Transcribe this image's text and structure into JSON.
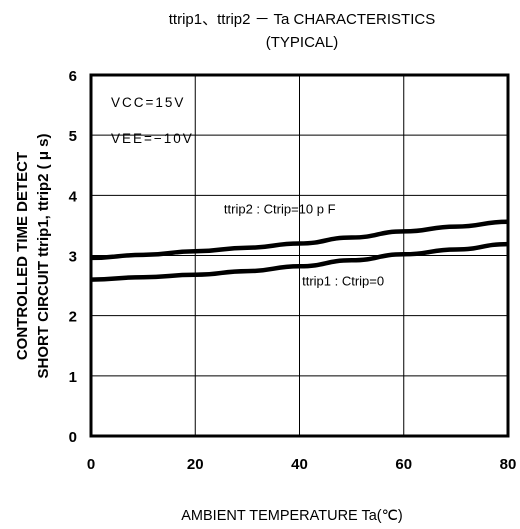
{
  "chart_data": {
    "type": "line",
    "title": "ttrip1、ttrip2 － Ta CHARACTERISTICS",
    "subtitle": "(TYPICAL)",
    "xlabel": "AMBIENT TEMPERATURE  Ta(℃)",
    "ylabel_line1": "CONTROLLED TIME DETECT",
    "ylabel_line2": "SHORT CIRCUIT  ttrip1, ttrip2 ( μ s)",
    "xlim": [
      0,
      80
    ],
    "ylim": [
      0,
      6
    ],
    "xticks": [
      "0",
      "20",
      "40",
      "60",
      "80"
    ],
    "yticks": [
      "0",
      "1",
      "2",
      "3",
      "4",
      "5",
      "6"
    ],
    "grid": true,
    "conditions": [
      "VCC=15V",
      "VEE=−10V"
    ],
    "series": [
      {
        "name": "ttrip2 : Ctrip=10pF",
        "x": [
          0,
          10,
          20,
          30,
          40,
          50,
          60,
          70,
          80
        ],
        "y": [
          2.96,
          3.01,
          3.07,
          3.13,
          3.2,
          3.3,
          3.4,
          3.48,
          3.56
        ]
      },
      {
        "name": "ttrip1 : Ctrip=0",
        "x": [
          0,
          10,
          20,
          30,
          40,
          50,
          60,
          70,
          80
        ],
        "y": [
          2.6,
          2.64,
          2.68,
          2.74,
          2.82,
          2.92,
          3.02,
          3.1,
          3.19
        ]
      }
    ],
    "annotations": [
      {
        "text": "ttrip2 : Ctrip=10 p F",
        "x": 25.5,
        "y": 3.7
      },
      {
        "text": "ttrip1 : Ctrip=0",
        "x": 40.5,
        "y": 2.5
      }
    ]
  }
}
